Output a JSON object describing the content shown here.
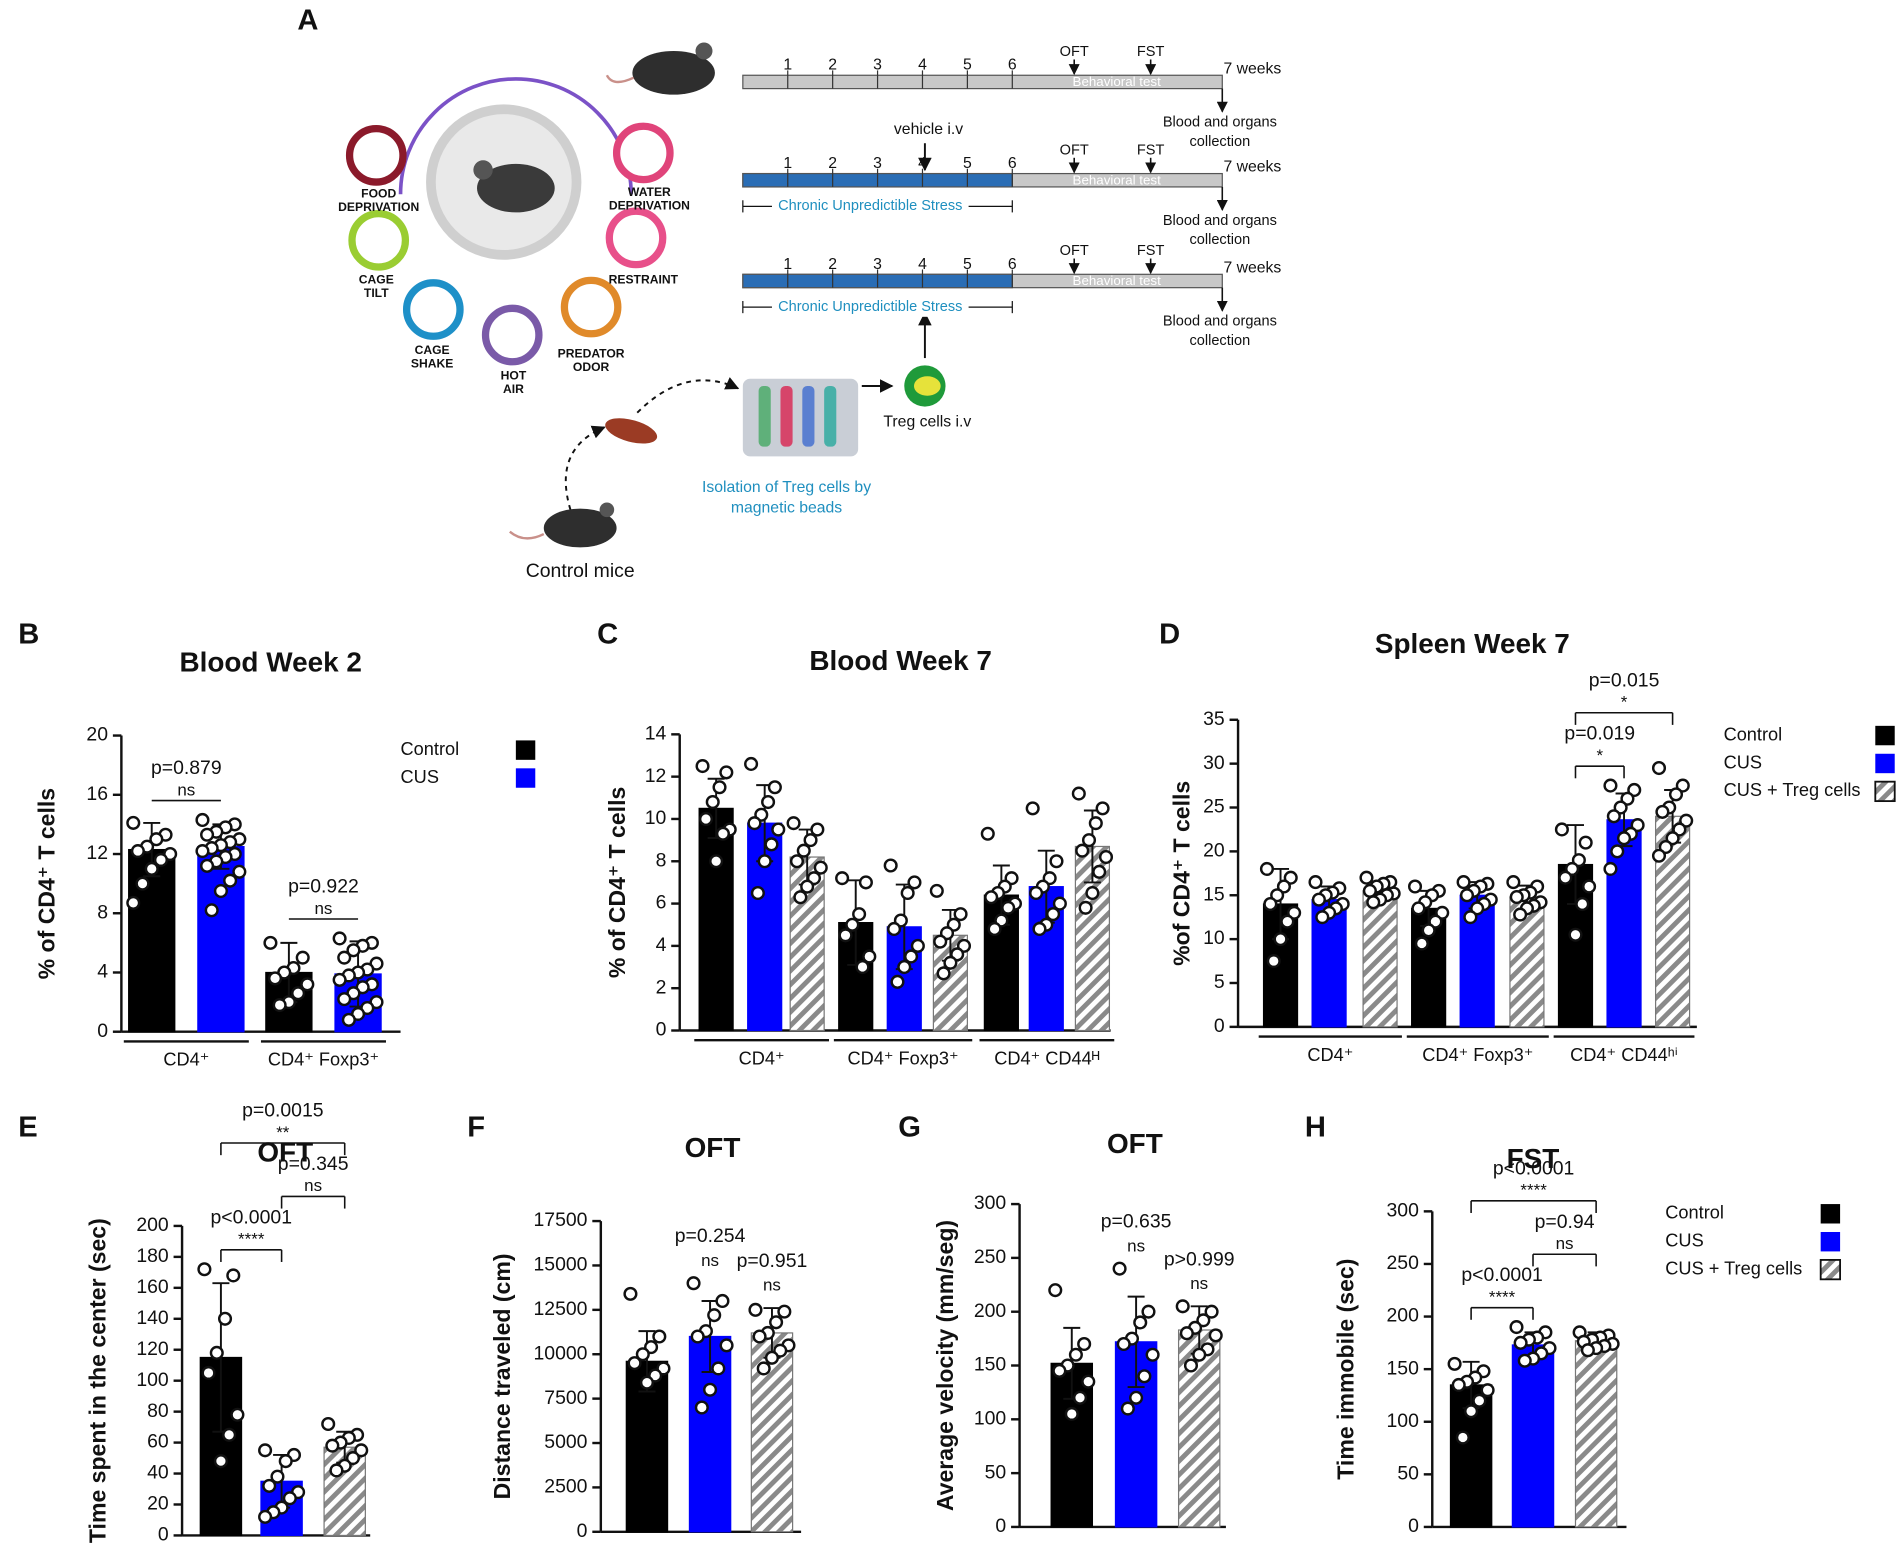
{
  "diagram": {
    "panel": "A",
    "stressors": [
      [
        "FOOD",
        "DEPRIVATION"
      ],
      [
        "WATER",
        "DEPRIVATION"
      ],
      [
        "CAGE",
        "TILT"
      ],
      [
        "RESTRAINT"
      ],
      [
        "CAGE",
        "SHAKE"
      ],
      [
        "PREDATOR",
        "ODOR"
      ],
      [
        "HOT",
        "AIR"
      ]
    ],
    "weeks": [
      "1",
      "2",
      "3",
      "4",
      "5",
      "6"
    ],
    "end": "7  weeks",
    "oft": "OFT",
    "fst": "FST",
    "behavioral": "Behavioral test",
    "collection": [
      "Blood and organs",
      "collection"
    ],
    "vehicle": "vehicle i.v",
    "cus": "Chronic Unpredictible Stress",
    "treg": "Treg cells i.v",
    "isolation": [
      "Isolation of Treg cells by",
      "magnetic beads"
    ],
    "control": "Control mice"
  },
  "chart_data": [
    {
      "type": "bar",
      "panel": "B",
      "title": "Blood Week 2",
      "y_label": "% of CD4⁺ T cells",
      "categories": [
        "CD4⁺",
        "CD4⁺ Foxp3⁺"
      ],
      "ylim": [
        0,
        20
      ],
      "yticks": [
        0,
        4,
        8,
        12,
        16,
        20
      ],
      "legend": true,
      "series": [
        {
          "name": "Control",
          "color": "#000000",
          "values": [
            12.3,
            4.0
          ],
          "errors": [
            1.8,
            2.0
          ],
          "points": [
            [
              14.1,
              13.3,
              13.0,
              12.5,
              12.2,
              12.0,
              11.6,
              11.0,
              10.0,
              8.7
            ],
            [
              6.0,
              5.0,
              4.3,
              4.0,
              3.6,
              3.2,
              2.6,
              2.0,
              1.8
            ]
          ]
        },
        {
          "name": "CUS",
          "color": "#0000ff",
          "values": [
            12.5,
            3.9
          ],
          "errors": [
            1.5,
            2.2
          ],
          "points": [
            [
              14.3,
              14.0,
              13.8,
              13.5,
              13.3,
              13.0,
              12.8,
              12.6,
              12.4,
              12.2,
              12.0,
              11.8,
              11.5,
              11.2,
              10.8,
              10.2,
              9.5,
              8.2
            ],
            [
              6.3,
              6.0,
              5.8,
              5.5,
              5.0,
              4.6,
              4.2,
              4.0,
              3.8,
              3.5,
              3.2,
              3.0,
              2.6,
              2.2,
              2.0,
              1.6,
              1.2,
              0.8
            ]
          ]
        }
      ],
      "annotations": [
        {
          "group": 0,
          "series": [
            0,
            1
          ],
          "label": "p=0.879",
          "sig": "ns"
        },
        {
          "group": 1,
          "series": [
            0,
            1
          ],
          "label": "p=0.922",
          "sig": "ns"
        }
      ]
    },
    {
      "type": "bar",
      "panel": "C",
      "title": "Blood Week 7",
      "y_label": "% of CD4⁺ T cells",
      "categories": [
        "CD4⁺",
        "CD4⁺ Foxp3⁺",
        "CD4⁺ CD44ᴴ"
      ],
      "ylim": [
        0,
        14
      ],
      "yticks": [
        0,
        2,
        4,
        6,
        8,
        10,
        12,
        14
      ],
      "legend": false,
      "series": [
        {
          "color": "#000000",
          "values": [
            10.5,
            5.1,
            6.4
          ],
          "errors": [
            1.4,
            2.0,
            1.4
          ],
          "points": [
            [
              12.5,
              12.2,
              11.5,
              10.8,
              10.0,
              9.5,
              9.3,
              8.0
            ],
            [
              7.2,
              7.0,
              5.5,
              5.0,
              4.5,
              3.5,
              3.0
            ],
            [
              9.3,
              7.2,
              6.8,
              6.5,
              6.3,
              6.0,
              5.8,
              5.2,
              4.8
            ]
          ]
        },
        {
          "color": "#0000ff",
          "values": [
            9.8,
            4.9,
            6.8
          ],
          "errors": [
            1.8,
            2.0,
            1.7
          ],
          "points": [
            [
              12.6,
              11.5,
              10.8,
              10.2,
              9.8,
              9.5,
              8.8,
              8.0,
              6.5
            ],
            [
              7.8,
              7.0,
              6.5,
              5.2,
              4.8,
              4.0,
              3.5,
              3.0,
              2.3
            ],
            [
              10.5,
              8.0,
              7.2,
              6.8,
              6.5,
              6.0,
              5.5,
              5.0,
              4.8
            ]
          ]
        },
        {
          "color": "#9a9a9a",
          "hatched": true,
          "values": [
            8.2,
            4.5,
            8.7
          ],
          "errors": [
            1.3,
            1.2,
            1.7
          ],
          "points": [
            [
              9.8,
              9.5,
              9.0,
              8.5,
              8.0,
              7.7,
              7.2,
              6.8,
              6.3
            ],
            [
              6.6,
              5.5,
              5.0,
              4.6,
              4.2,
              4.0,
              3.6,
              3.2,
              2.7
            ],
            [
              11.2,
              10.5,
              9.8,
              9.0,
              8.5,
              8.2,
              7.5,
              6.5,
              5.8
            ]
          ]
        }
      ],
      "annotations": []
    },
    {
      "type": "bar",
      "panel": "D",
      "title": "Spleen Week 7",
      "y_label": "%of CD4⁺ T cells",
      "categories": [
        "CD4⁺",
        "CD4⁺ Foxp3⁺",
        "CD4⁺ CD44ʰⁱ"
      ],
      "ylim": [
        0,
        35
      ],
      "yticks": [
        0,
        5,
        10,
        15,
        20,
        25,
        30,
        35
      ],
      "legend": true,
      "series": [
        {
          "name": "Control",
          "color": "#000000",
          "values": [
            14.0,
            13.5,
            18.5
          ],
          "errors": [
            4.0,
            2.0,
            4.5
          ],
          "points": [
            [
              18,
              17,
              16,
              15,
              14,
              13,
              12,
              10,
              7.5
            ],
            [
              16,
              15.5,
              15,
              14.2,
              13.5,
              13,
              12,
              11,
              9.5
            ],
            [
              22.5,
              21,
              19,
              18,
              17,
              16,
              14,
              10.5
            ]
          ]
        },
        {
          "name": "CUS",
          "color": "#0000ff",
          "values": [
            14.5,
            15.0,
            23.6
          ],
          "errors": [
            1.5,
            1.5,
            3.0
          ],
          "points": [
            [
              16.5,
              15.8,
              15.3,
              15,
              14.5,
              14,
              13.5,
              13,
              12.5
            ],
            [
              16.5,
              16.3,
              16,
              15.5,
              15,
              14.5,
              14,
              13.5,
              12.5
            ],
            [
              27.5,
              27,
              26,
              25,
              24,
              23,
              22,
              21.5,
              20,
              18
            ]
          ]
        },
        {
          "name": "CUS + Treg cells",
          "color": "#9a9a9a",
          "hatched": true,
          "values": [
            15.5,
            14.8,
            24.0
          ],
          "errors": [
            1.0,
            1.3,
            3.0
          ],
          "points": [
            [
              17,
              16.5,
              16.3,
              16,
              15.5,
              15.2,
              15,
              14.5,
              14.2
            ],
            [
              16.5,
              16,
              15.3,
              15,
              14.8,
              14.2,
              13.8,
              13.5,
              12.8
            ],
            [
              29.5,
              27.5,
              26.5,
              25,
              24.5,
              23.5,
              22.5,
              21.5,
              20.5,
              19.5
            ]
          ]
        }
      ],
      "annotations": [
        {
          "group": 2,
          "series": [
            0,
            1
          ],
          "label": "p=0.019",
          "sig": "*"
        },
        {
          "group": 2,
          "series": [
            0,
            2
          ],
          "label": "p=0.015",
          "sig": "*"
        }
      ]
    },
    {
      "type": "bar",
      "panel": "E",
      "title": "OFT",
      "y_label": "Time spent in the center (sec)",
      "ylim": [
        0,
        200
      ],
      "yticks": [
        0,
        20,
        40,
        60,
        80,
        100,
        120,
        140,
        160,
        180,
        200
      ],
      "legend": false,
      "series": [
        {
          "color": "#000000",
          "values": [
            115
          ],
          "errors": [
            48
          ],
          "points": [
            [
              172,
              168,
              140,
              118,
              105,
              78,
              65,
              48
            ]
          ]
        },
        {
          "color": "#0000ff",
          "values": [
            35
          ],
          "errors": [
            17
          ],
          "points": [
            [
              55,
              52,
              48,
              38,
              32,
              28,
              24,
              18,
              15,
              12
            ]
          ]
        },
        {
          "color": "#9a9a9a",
          "hatched": true,
          "values": [
            57
          ],
          "errors": [
            10
          ],
          "points": [
            [
              72,
              65,
              63,
              60,
              58,
              55,
              50,
              45,
              42
            ]
          ]
        }
      ],
      "annotations": [
        {
          "group": 0,
          "series": [
            0,
            1
          ],
          "label": "p<0.0001",
          "sig": "****"
        },
        {
          "group": 0,
          "series": [
            1,
            2
          ],
          "label": "p=0.345",
          "sig": "ns"
        },
        {
          "group": 0,
          "series": [
            0,
            2
          ],
          "label": "p=0.0015",
          "sig": "**"
        }
      ]
    },
    {
      "type": "bar",
      "panel": "F",
      "title": "OFT",
      "y_label": "Distance traveled (cm)",
      "ylim": [
        0,
        17500
      ],
      "yticks": [
        0,
        2500,
        5000,
        7500,
        10000,
        12500,
        15000,
        17500
      ],
      "legend": false,
      "series": [
        {
          "color": "#000000",
          "values": [
            9600
          ],
          "errors": [
            1700
          ],
          "points": [
            [
              13400,
              11000,
              10400,
              10000,
              9500,
              9200,
              8800,
              8400
            ]
          ]
        },
        {
          "color": "#0000ff",
          "values": [
            11000
          ],
          "errors": [
            2000
          ],
          "points": [
            [
              14000,
              13000,
              12200,
              11300,
              11000,
              10500,
              9200,
              8000,
              7000
            ]
          ]
        },
        {
          "color": "#9a9a9a",
          "hatched": true,
          "values": [
            11200
          ],
          "errors": [
            1400
          ],
          "points": [
            [
              12500,
              12400,
              11800,
              11200,
              11000,
              10500,
              10200,
              9800,
              9200
            ]
          ]
        }
      ],
      "annotations": [
        {
          "group": 0,
          "series": [
            1
          ],
          "label": "p=0.254",
          "sig": "ns"
        },
        {
          "group": 0,
          "series": [
            2
          ],
          "label": "p=0.951",
          "sig": "ns"
        }
      ]
    },
    {
      "type": "bar",
      "panel": "G",
      "title": "OFT",
      "y_label": "Average velocity (mm/seg)",
      "ylim": [
        0,
        300
      ],
      "yticks": [
        0,
        50,
        100,
        150,
        200,
        250,
        300
      ],
      "legend": false,
      "series": [
        {
          "color": "#000000",
          "values": [
            152
          ],
          "errors": [
            33
          ],
          "points": [
            [
              220,
              170,
              160,
              150,
              145,
              135,
              120,
              105
            ]
          ]
        },
        {
          "color": "#0000ff",
          "values": [
            172
          ],
          "errors": [
            42
          ],
          "points": [
            [
              240,
              200,
              190,
              175,
              170,
              160,
              140,
              120,
              110
            ]
          ]
        },
        {
          "color": "#9a9a9a",
          "hatched": true,
          "values": [
            183
          ],
          "errors": [
            22
          ],
          "points": [
            [
              205,
              200,
              192,
              185,
              180,
              178,
              165,
              160,
              150
            ]
          ]
        }
      ],
      "annotations": [
        {
          "group": 0,
          "series": [
            1
          ],
          "label": "p=0.635",
          "sig": "ns"
        },
        {
          "group": 0,
          "series": [
            2
          ],
          "label": "p>0.999",
          "sig": "ns"
        }
      ]
    },
    {
      "type": "bar",
      "panel": "H",
      "title": "FST",
      "y_label": "Time immobile (sec)",
      "ylim": [
        0,
        300
      ],
      "yticks": [
        0,
        50,
        100,
        150,
        200,
        250,
        300
      ],
      "legend": true,
      "series": [
        {
          "name": "Control",
          "color": "#000000",
          "values": [
            135
          ],
          "errors": [
            22
          ],
          "points": [
            [
              155,
              148,
              142,
              138,
              135,
              130,
              120,
              110,
              85
            ]
          ]
        },
        {
          "name": "CUS",
          "color": "#0000ff",
          "values": [
            173
          ],
          "errors": [
            12
          ],
          "points": [
            [
              190,
              185,
              180,
              178,
              175,
              170,
              165,
              160,
              158
            ]
          ]
        },
        {
          "name": "CUS + Treg cells",
          "color": "#9a9a9a",
          "hatched": true,
          "values": [
            177
          ],
          "errors": [
            8
          ],
          "points": [
            [
              185,
              182,
              180,
              178,
              176,
              174,
              172,
              170,
              168
            ]
          ]
        }
      ],
      "annotations": [
        {
          "group": 0,
          "series": [
            0,
            1
          ],
          "label": "p<0.0001",
          "sig": "****"
        },
        {
          "group": 0,
          "series": [
            1,
            2
          ],
          "label": "p=0.94",
          "sig": "ns"
        },
        {
          "group": 0,
          "series": [
            0,
            2
          ],
          "label": "p<0.0001",
          "sig": "****"
        }
      ]
    }
  ]
}
